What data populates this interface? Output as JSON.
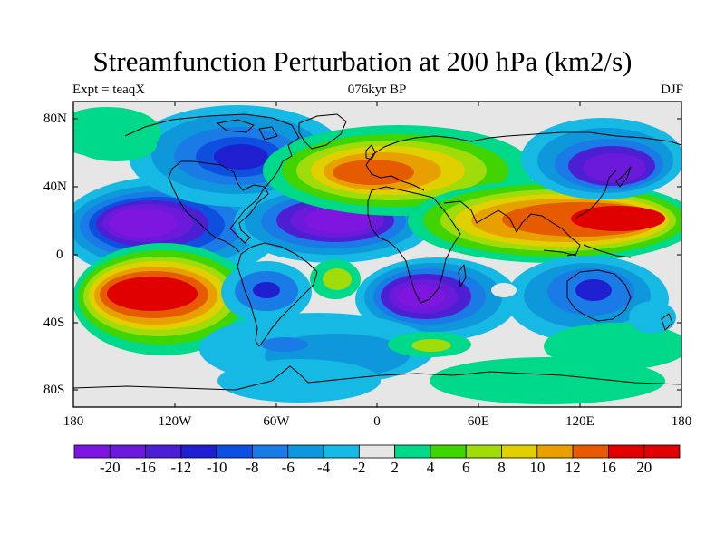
{
  "title": "Streamfunction Perturbation at 200 hPa (km2/s)",
  "left_subtitle": "Expt = teaqX",
  "center_subtitle": "076kyr BP",
  "right_subtitle": "DJF",
  "lat_ticks": [
    "80N",
    "40N",
    "0",
    "40S",
    "80S"
  ],
  "lon_ticks": [
    "180",
    "120W",
    "60W",
    "0",
    "60E",
    "120E",
    "180"
  ],
  "colorbar": {
    "labels": [
      "-20",
      "-16",
      "-12",
      "-10",
      "-8",
      "-6",
      "-4",
      "-2",
      "2",
      "4",
      "6",
      "8",
      "10",
      "12",
      "16",
      "20"
    ],
    "colors": [
      "#7f16e0",
      "#6a1ad8",
      "#4d1fd2",
      "#1f1fd0",
      "#0e4fe0",
      "#1a7be6",
      "#0f97db",
      "#16b9e3",
      "#e6e6e6",
      "#00d88a",
      "#40d400",
      "#9fdc0a",
      "#e0d000",
      "#e8a000",
      "#e65a00",
      "#e00000",
      "#e00000"
    ]
  },
  "map_data": {
    "type": "filled-contour-map",
    "field": "200 hPa streamfunction perturbation",
    "units": "km2/s",
    "season": "DJF",
    "period": "076kyr BP",
    "experiment": "teaqX",
    "lat_range": [
      -90,
      90
    ],
    "lon_range": [
      -180,
      180
    ],
    "features": [
      {
        "name": "negative-center-east-pacific",
        "lon": -130,
        "lat": 17,
        "value": -20
      },
      {
        "name": "negative-center-atlantic",
        "lon": -40,
        "lat": 19,
        "value": -20
      },
      {
        "name": "negative-center-south-africa",
        "lon": 25,
        "lat": -25,
        "value": -20
      },
      {
        "name": "negative-center-nw-pacific",
        "lon": 145,
        "lat": 52,
        "value": -20
      },
      {
        "name": "negative-center-north-america",
        "lon": -90,
        "lat": 58,
        "value": -12
      },
      {
        "name": "positive-center-south-pacific",
        "lon": -128,
        "lat": -23,
        "value": 20
      },
      {
        "name": "positive-center-europe",
        "lon": -5,
        "lat": 46,
        "value": 16
      },
      {
        "name": "positive-center-asia",
        "lon": 130,
        "lat": 20,
        "value": 20
      },
      {
        "name": "negative-center-south-america",
        "lon": -70,
        "lat": -23,
        "value": -10
      },
      {
        "name": "negative-center-australia",
        "lon": 135,
        "lat": -22,
        "value": -10
      },
      {
        "name": "positive-center-south-atlantic",
        "lon": -20,
        "lat": -13,
        "value": 8
      },
      {
        "name": "positive-center-southern-ocean",
        "lon": 30,
        "lat": -55,
        "value": 8
      }
    ]
  }
}
